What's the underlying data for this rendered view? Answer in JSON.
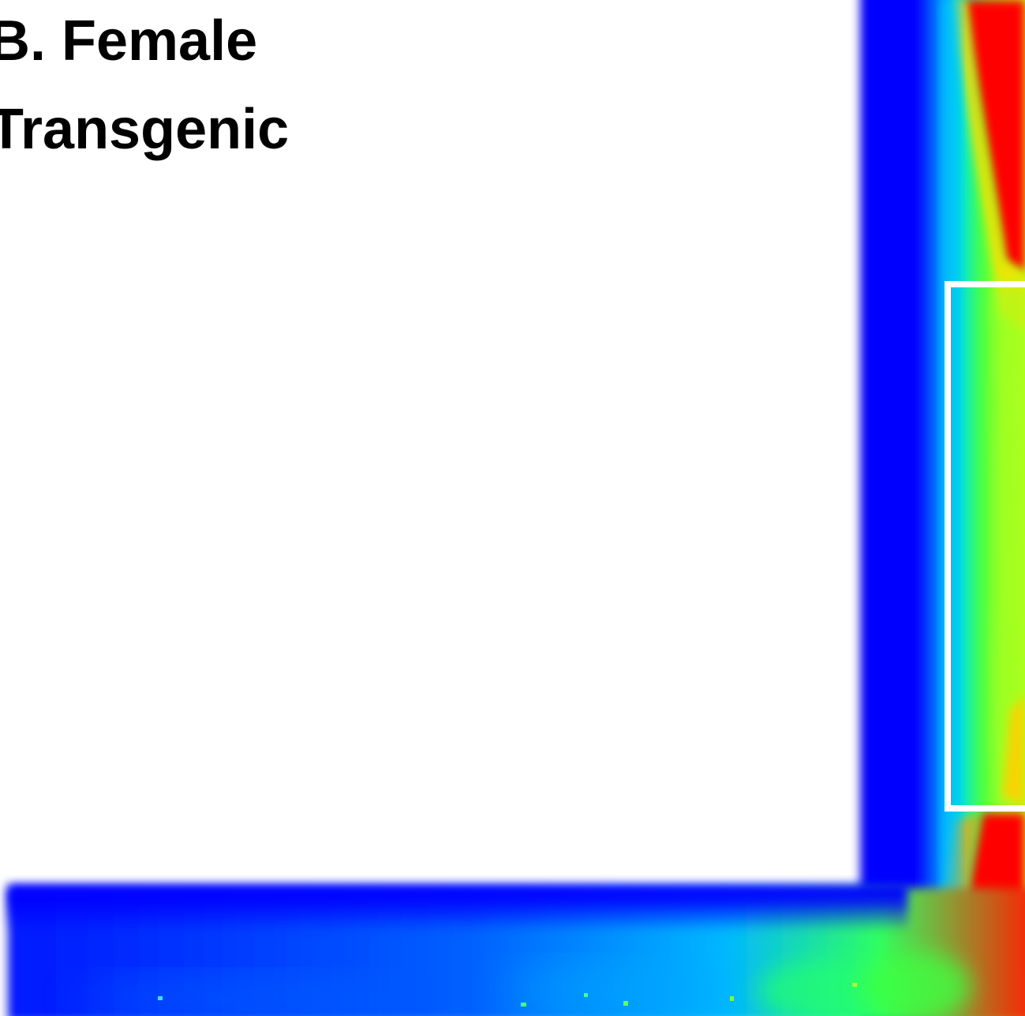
{
  "panel": {
    "line1": "B. Female",
    "line2": "Transgenic"
  },
  "colormap": {
    "low": "#0000ff",
    "mid_low": "#00c8ff",
    "mid": "#00ff00",
    "mid_high": "#ffff00",
    "high": "#ff0000"
  },
  "roi_box_color": "#ffffff"
}
